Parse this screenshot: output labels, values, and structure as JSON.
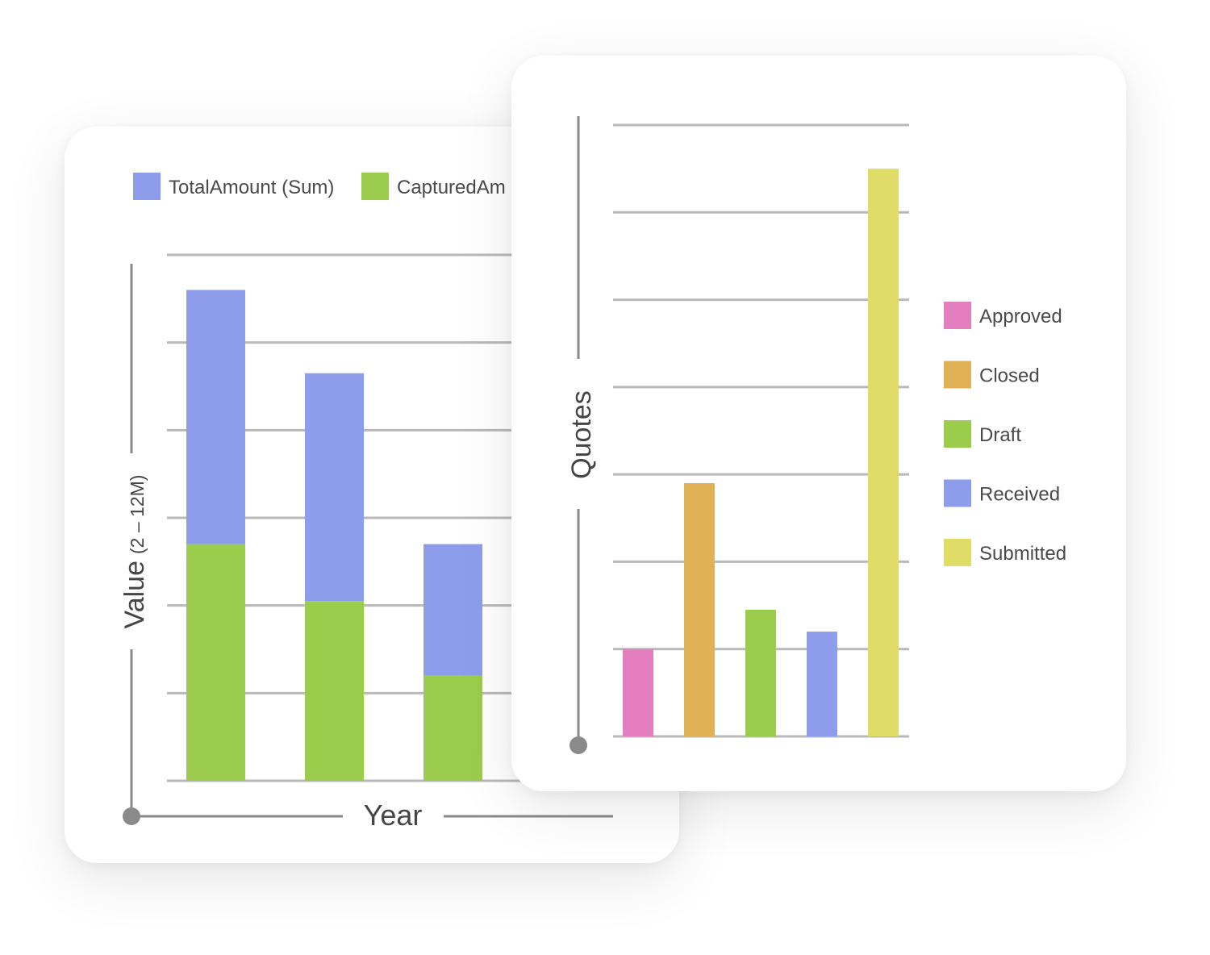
{
  "chart_data": [
    {
      "type": "bar",
      "stacked": true,
      "title": "",
      "xlabel": "Year",
      "ylabel": "Value",
      "ylabel_range": "(2 – 12M)",
      "categories": [
        "",
        "",
        ""
      ],
      "series": [
        {
          "name": "CapturedAmount",
          "legend_visible": "CapturedAm",
          "color": "#9bcc4b",
          "values": [
            5.4,
            4.1,
            2.4
          ]
        },
        {
          "name": "TotalAmount (Sum)",
          "legend_visible": "TotalAmount (Sum)",
          "color": "#8d9dec",
          "values": [
            5.8,
            5.2,
            3.0
          ]
        }
      ],
      "ylim": [
        0,
        12
      ],
      "grid": true,
      "legend": "top"
    },
    {
      "type": "bar",
      "title": "",
      "xlabel": "",
      "ylabel": "Quotes",
      "categories": [
        "Approved",
        "Closed",
        "Draft",
        "Received",
        "Submitted"
      ],
      "values": [
        1,
        2.9,
        1.45,
        1.2,
        6.5
      ],
      "colors": [
        "#e47fbf",
        "#e0b255",
        "#9bcc4b",
        "#8d9dec",
        "#dfdc68"
      ],
      "ylim": [
        0,
        7
      ],
      "grid": true,
      "legend": "right"
    }
  ]
}
